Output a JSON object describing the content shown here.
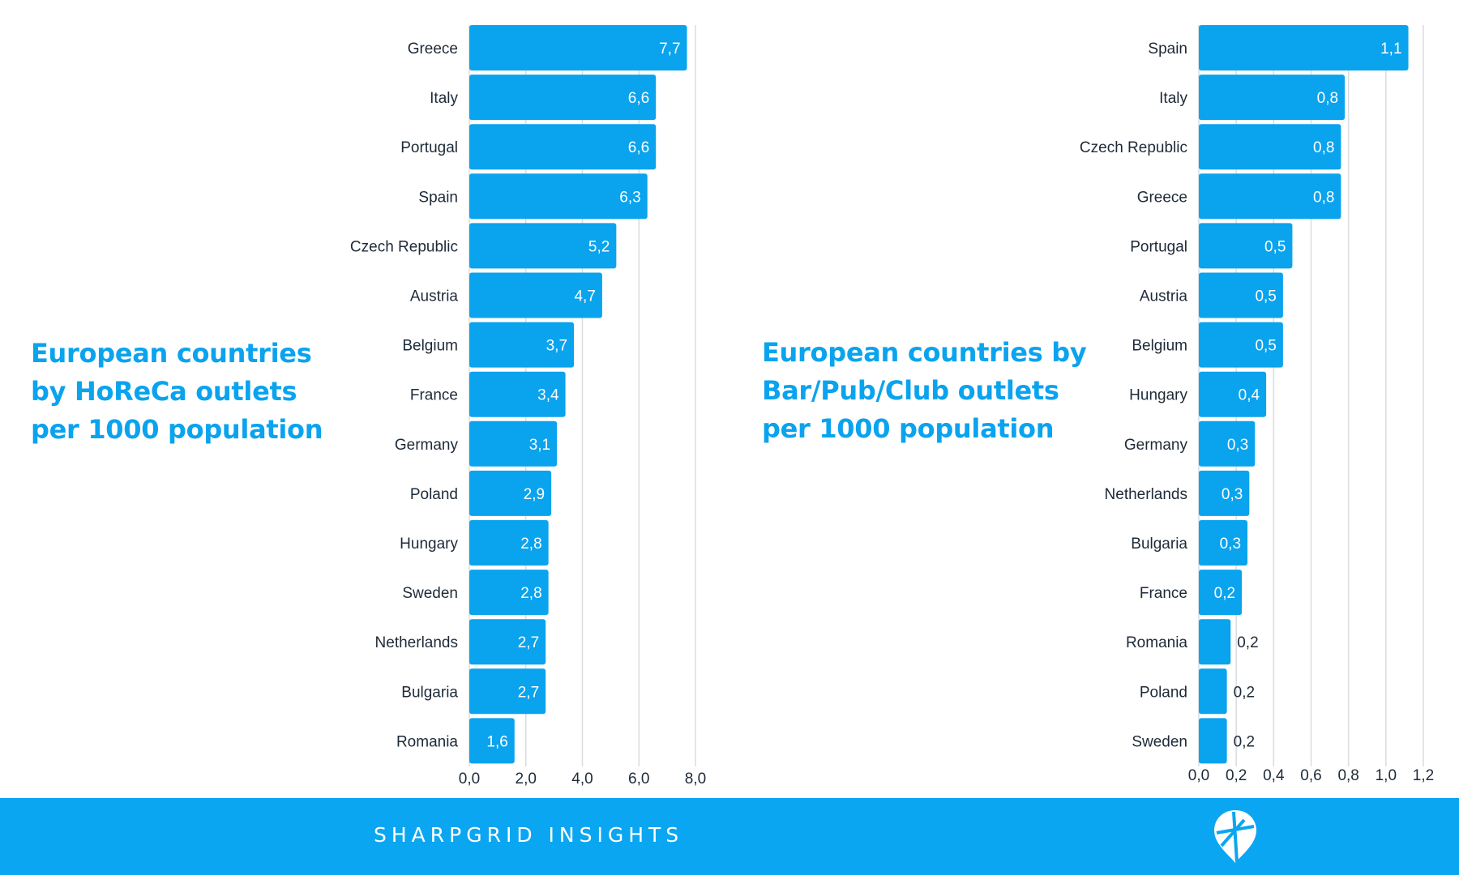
{
  "colors": {
    "bar": "#0aa3ee",
    "footer": "#0aa6f2",
    "title": "#0aa3ee"
  },
  "left": {
    "title_lines": [
      "European countries",
      "by HoReCa outlets",
      "per 1000 population"
    ]
  },
  "right": {
    "title_lines": [
      "European countries by",
      "Bar/Pub/Club outlets",
      "per 1000 population"
    ]
  },
  "footer": {
    "brand": "SHARPGRID INSIGHTS",
    "logo_icon": "map-pin-grid-icon"
  },
  "chart_data": [
    {
      "type": "bar",
      "orientation": "horizontal",
      "title": "European countries by HoReCa outlets per 1000 population",
      "categories": [
        "Greece",
        "Italy",
        "Portugal",
        "Spain",
        "Czech Republic",
        "Austria",
        "Belgium",
        "France",
        "Germany",
        "Poland",
        "Hungary",
        "Sweden",
        "Netherlands",
        "Bulgaria",
        "Romania"
      ],
      "values": [
        7.7,
        6.6,
        6.6,
        6.3,
        5.2,
        4.7,
        3.7,
        3.4,
        3.1,
        2.9,
        2.8,
        2.8,
        2.7,
        2.7,
        1.6
      ],
      "value_labels": [
        "7,7",
        "6,6",
        "6,6",
        "6,3",
        "5,2",
        "4,7",
        "3,7",
        "3,4",
        "3,1",
        "2,9",
        "2,8",
        "2,8",
        "2,7",
        "2,7",
        "1,6"
      ],
      "xlim": [
        0,
        8
      ],
      "xticks": [
        0,
        2,
        4,
        6,
        8
      ],
      "xtick_labels": [
        "0,0",
        "2,0",
        "4,0",
        "6,0",
        "8,0"
      ],
      "grid": true
    },
    {
      "type": "bar",
      "orientation": "horizontal",
      "title": "European countries by Bar/Pub/Club outlets per 1000 population",
      "categories": [
        "Spain",
        "Italy",
        "Czech Republic",
        "Greece",
        "Portugal",
        "Austria",
        "Belgium",
        "Hungary",
        "Germany",
        "Netherlands",
        "Bulgaria",
        "France",
        "Romania",
        "Poland",
        "Sweden"
      ],
      "values": [
        1.12,
        0.78,
        0.76,
        0.76,
        0.5,
        0.45,
        0.45,
        0.36,
        0.3,
        0.27,
        0.26,
        0.23,
        0.17,
        0.15,
        0.15
      ],
      "value_labels": [
        "1,1",
        "0,8",
        "0,8",
        "0,8",
        "0,5",
        "0,5",
        "0,5",
        "0,4",
        "0,3",
        "0,3",
        "0,3",
        "0,2",
        "0,2",
        "0,2",
        "0,2"
      ],
      "xlim": [
        0,
        1.2
      ],
      "xticks": [
        0,
        0.2,
        0.4,
        0.6,
        0.8,
        1.0,
        1.2
      ],
      "xtick_labels": [
        "0,0",
        "0,2",
        "0,4",
        "0,6",
        "0,8",
        "1,0",
        "1,2"
      ],
      "grid": true
    }
  ]
}
